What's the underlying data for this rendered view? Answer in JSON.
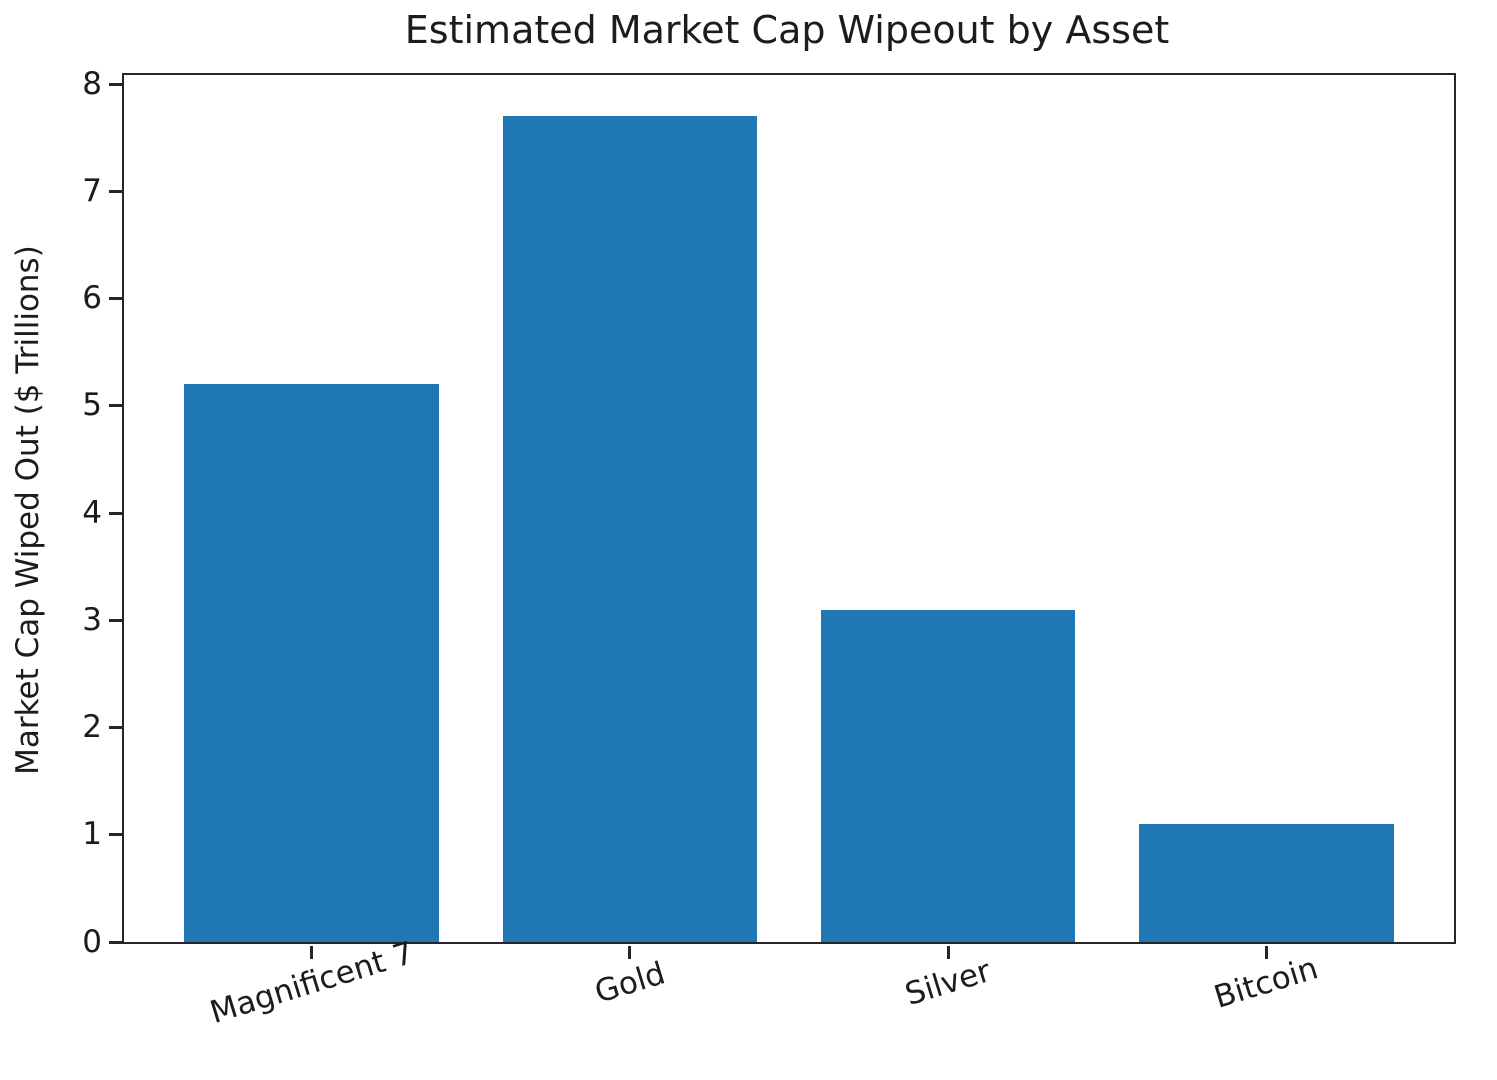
{
  "chart_data": {
    "type": "bar",
    "title": "Estimated Market Cap Wipeout by Asset",
    "ylabel": "Market Cap Wiped Out ($ Trillions)",
    "xlabel": "",
    "categories": [
      "Magnificent 7",
      "Gold",
      "Silver",
      "Bitcoin"
    ],
    "values": [
      5.2,
      7.7,
      3.1,
      1.1
    ],
    "ylim": [
      0,
      8.085
    ],
    "yticks": [
      0,
      1,
      2,
      3,
      4,
      5,
      6,
      7,
      8
    ],
    "bar_color": "#1f77b4",
    "bar_rel_width": 0.8,
    "grid": false,
    "legend": "none",
    "x_tick_rotation_deg": 17
  }
}
